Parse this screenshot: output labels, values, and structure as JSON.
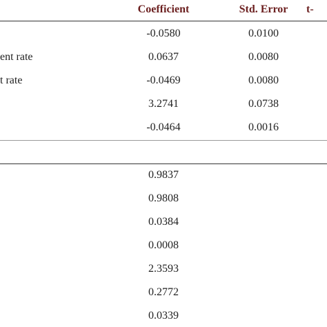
{
  "table": {
    "header": [
      "Coefficient",
      "Std. Error",
      "t-"
    ],
    "rows": [
      [
        "",
        "-0.0580",
        "0.0100"
      ],
      [
        "ent rate",
        "0.0637",
        "0.0080"
      ],
      [
        "t rate",
        "-0.0469",
        "0.0080"
      ],
      [
        "",
        "3.2741",
        "0.0738"
      ],
      [
        "",
        "-0.0464",
        "0.0016"
      ]
    ],
    "stats": [
      "0.9837",
      "0.9808",
      "0.0384",
      "0.0008",
      "2.3593",
      "0.2772",
      "0.0339"
    ]
  }
}
